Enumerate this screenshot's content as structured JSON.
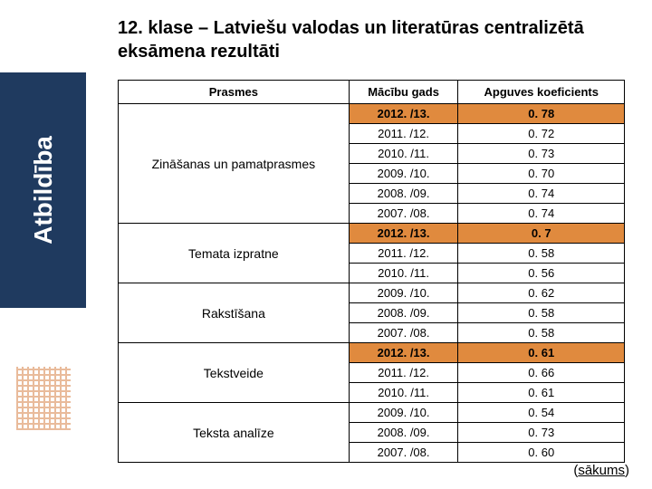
{
  "sidebar": {
    "label": "Atbildība"
  },
  "title": "12. klase – Latviešu valodas un literatūras centralizētā eksāmena rezultāti",
  "table": {
    "headers": {
      "skills": "Prasmes",
      "year": "Mācību gads",
      "coef": "Apguves koeficients"
    },
    "rows": [
      {
        "skill": "Zināšanas un pamatprasmes",
        "year": "2012. /13.",
        "coef": "0. 78",
        "hl": true
      },
      {
        "skill": "",
        "year": "2011. /12.",
        "coef": "0. 72",
        "hl": false
      },
      {
        "skill": "",
        "year": "2010. /11.",
        "coef": "0. 73",
        "hl": false
      },
      {
        "skill": "",
        "year": "2009. /10.",
        "coef": "0. 70",
        "hl": false
      },
      {
        "skill": "",
        "year": "2008. /09.",
        "coef": "0. 74",
        "hl": false
      },
      {
        "skill": "",
        "year": "2007. /08.",
        "coef": "0. 74",
        "hl": false
      },
      {
        "skill": "Temata izpratne",
        "year": "2012. /13.",
        "coef": "0. 7",
        "hl": true
      },
      {
        "skill": "",
        "year": "2011. /12.",
        "coef": "0. 58",
        "hl": false
      },
      {
        "skill": "",
        "year": "2010. /11.",
        "coef": "0. 56",
        "hl": false
      },
      {
        "skill": "Rakstīšana",
        "year": "2009. /10.",
        "coef": "0. 62",
        "hl": false
      },
      {
        "skill": "",
        "year": "2008. /09.",
        "coef": "0. 58",
        "hl": false
      },
      {
        "skill": "",
        "year": "2007. /08.",
        "coef": "0. 58",
        "hl": false
      },
      {
        "skill": "Tekstveide",
        "year": "2012. /13.",
        "coef": "0. 61",
        "hl": true
      },
      {
        "skill": "",
        "year": "2011. /12.",
        "coef": "0. 66",
        "hl": false
      },
      {
        "skill": "",
        "year": "2010. /11.",
        "coef": "0. 61",
        "hl": false
      },
      {
        "skill": "Teksta analīze",
        "year": "2009. /10.",
        "coef": "0. 54",
        "hl": false
      },
      {
        "skill": "",
        "year": "2008. /09.",
        "coef": "0. 73",
        "hl": false
      },
      {
        "skill": "",
        "year": "2007. /08.",
        "coef": "0. 60",
        "hl": false
      }
    ],
    "skill_spans": [
      {
        "start": 0,
        "span": 6,
        "label": "Zināšanas un pamatprasmes"
      },
      {
        "start": 6,
        "span": 3,
        "label": "Temata izpratne"
      },
      {
        "start": 9,
        "span": 3,
        "label": "Rakstīšana"
      },
      {
        "start": 12,
        "span": 3,
        "label": "Tekstveide"
      },
      {
        "start": 15,
        "span": 3,
        "label": "Teksta analīze"
      }
    ]
  },
  "footer": {
    "open": "(",
    "link": "sākums",
    "close": ")"
  },
  "colors": {
    "sidebar_bg": "#1f3a5f",
    "highlight": "#e08a3e",
    "border": "#000000",
    "text": "#000000",
    "logo": "#d47a3a"
  }
}
